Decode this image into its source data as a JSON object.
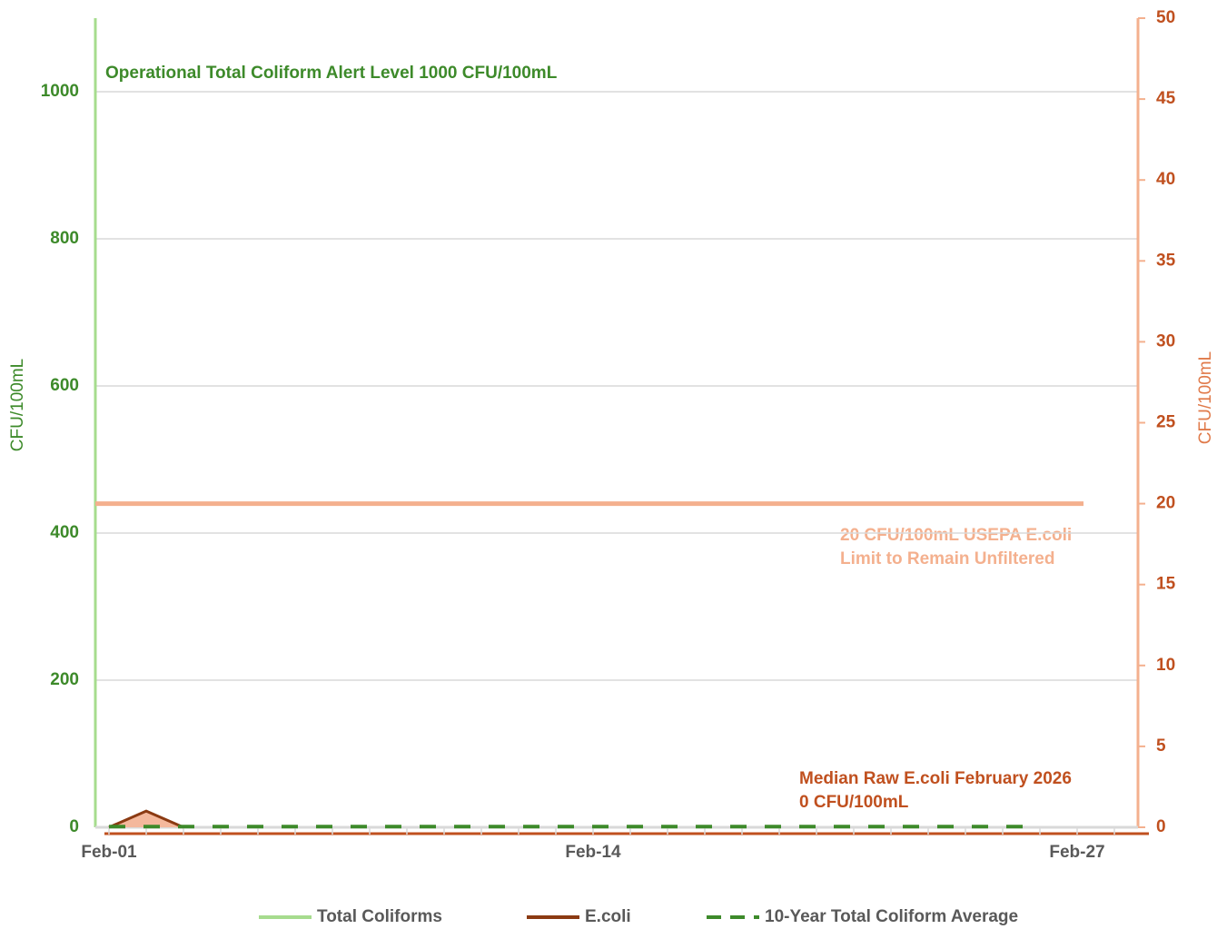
{
  "chart_data": {
    "type": "line",
    "categories": [
      "Feb-01",
      null,
      null,
      null,
      null,
      null,
      null,
      null,
      null,
      null,
      null,
      null,
      null,
      "Feb-14",
      null,
      null,
      null,
      null,
      null,
      null,
      null,
      null,
      null,
      null,
      null,
      null,
      "Feb-27",
      null
    ],
    "series": [
      {
        "name": "Total Coliforms",
        "color": "#a6dc8e",
        "axis": "y",
        "values": [
          1,
          4,
          1,
          null,
          null,
          null,
          null,
          null,
          null,
          null,
          null,
          null,
          null,
          null,
          null,
          null,
          null,
          null,
          null,
          null,
          null,
          null,
          null,
          null,
          null,
          null,
          null,
          null
        ]
      },
      {
        "name": "E.coli",
        "color": "#8b3a12",
        "area_color": "#f4b89c",
        "axis": "y2",
        "values": [
          0,
          1,
          0,
          null,
          null,
          null,
          null,
          null,
          null,
          null,
          null,
          null,
          null,
          null,
          null,
          null,
          null,
          null,
          null,
          null,
          null,
          null,
          null,
          null,
          null,
          null,
          null,
          null
        ]
      },
      {
        "name": "10-Year Total Coliform Average",
        "color": "#3d8a2a",
        "axis": "y",
        "dashed": true,
        "values": [
          1,
          1,
          1,
          1,
          1,
          1,
          1,
          1,
          1,
          1,
          1,
          1,
          1,
          1,
          1,
          1,
          1,
          1,
          1,
          1,
          1,
          1,
          1,
          1,
          1,
          1,
          null,
          null
        ]
      }
    ],
    "ylim": [
      0,
      1100
    ],
    "yticks": [
      0,
      200,
      400,
      600,
      800,
      1000
    ],
    "y2lim": [
      0,
      50
    ],
    "y2ticks": [
      0,
      5,
      10,
      15,
      20,
      25,
      30,
      35,
      40,
      45,
      50
    ],
    "ylabel": "CFU/100mL",
    "y2label": "CFU/100mL",
    "grid": true,
    "reference_lines": [
      {
        "value": 20,
        "axis": "y2",
        "color": "#f4b08e"
      }
    ],
    "annotations": [
      "Operational Total Coliform Alert Level 1000 CFU/100mL",
      "20 CFU/100mL USEPA E.coli",
      "Limit to Remain Unfiltered",
      "Median Raw E.coli February 2026",
      "0 CFU/100mL"
    ]
  }
}
